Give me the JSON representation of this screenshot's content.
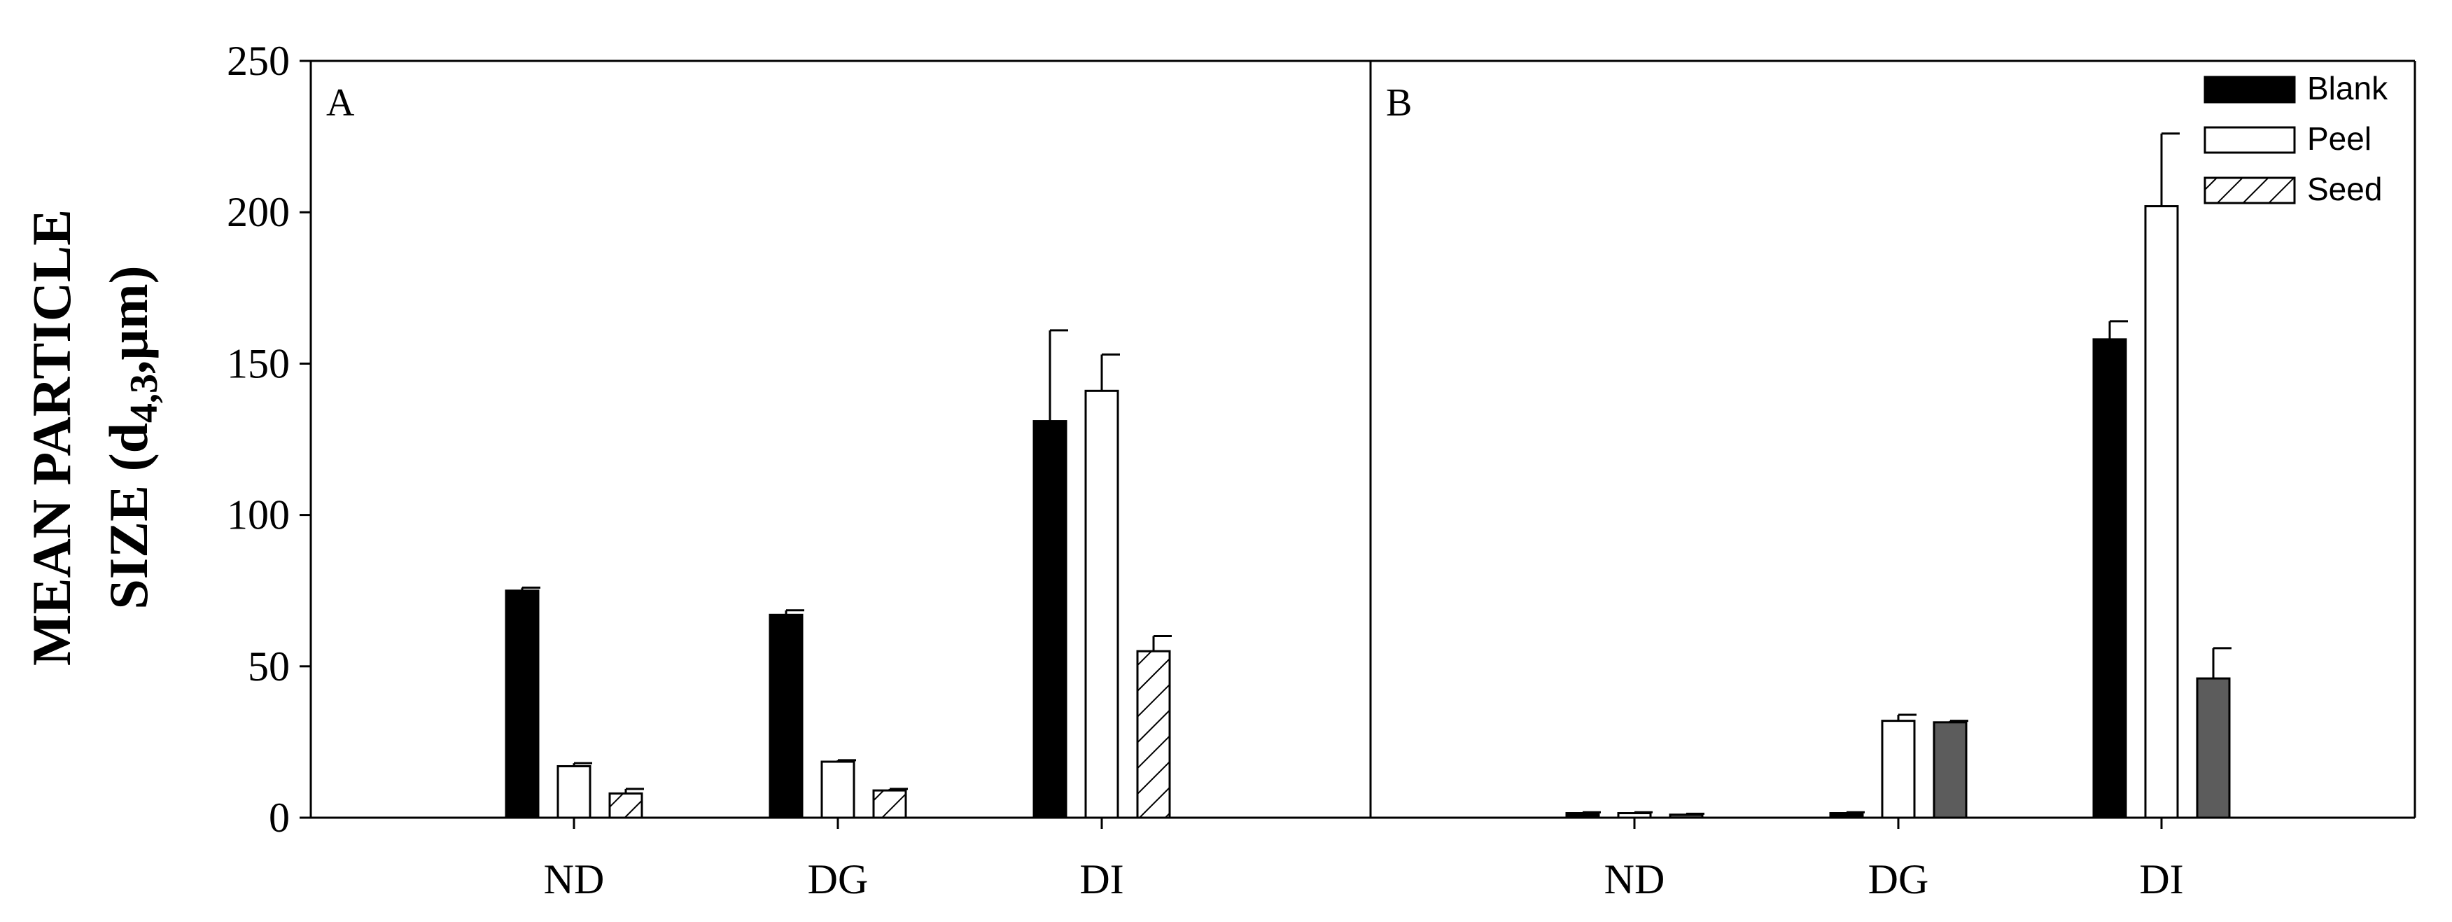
{
  "chart_data": {
    "type": "bar",
    "ylabel_line1": "MEAN PARTICLE",
    "ylabel_line2_prefix": "SIZE (d",
    "ylabel_line2_sub": "4,3",
    "ylabel_line2_suffix": ",μm)",
    "ylim": [
      0,
      250
    ],
    "yticks": [
      "0",
      "50",
      "100",
      "150",
      "200",
      "250"
    ],
    "categories": [
      "ND",
      "DG",
      "DI"
    ],
    "legend": [
      {
        "name": "Blank",
        "style": "solid-black"
      },
      {
        "name": "Peel",
        "style": "white"
      },
      {
        "name": "Seed",
        "style": "hatched"
      }
    ],
    "legend_position": "top-right of panel B",
    "panels": [
      {
        "label": "A",
        "series": [
          {
            "name": "Blank",
            "values": [
              75,
              67,
              131
            ],
            "errors": [
              1,
              1.5,
              30
            ]
          },
          {
            "name": "Peel",
            "values": [
              17,
              18.5,
              141
            ],
            "errors": [
              1,
              0.5,
              12
            ]
          },
          {
            "name": "Seed",
            "values": [
              8,
              9,
              55
            ],
            "errors": [
              1.5,
              0.5,
              5
            ]
          }
        ]
      },
      {
        "label": "B",
        "series": [
          {
            "name": "Blank",
            "values": [
              1.5,
              1.5,
              158
            ],
            "errors": [
              0.3,
              0.3,
              6
            ]
          },
          {
            "name": "Peel",
            "values": [
              1.5,
              32,
              202
            ],
            "errors": [
              0.3,
              2,
              24
            ]
          },
          {
            "name": "Seed",
            "values": [
              1,
              31.5,
              46
            ],
            "errors": [
              0.3,
              0.5,
              10
            ]
          }
        ]
      }
    ],
    "colors": {
      "blank": "#000000",
      "peel": "#ffffff",
      "seedA": "#ffffff",
      "seedB": "#5c5c5c",
      "axis": "#000000"
    }
  }
}
